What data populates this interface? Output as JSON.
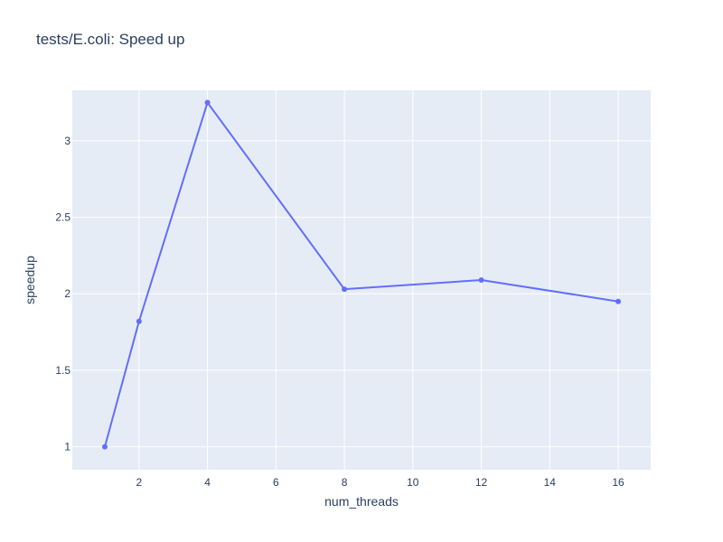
{
  "chart_data": {
    "type": "line",
    "title": "tests/E.coli: Speed up",
    "xlabel": "num_threads",
    "ylabel": "speedup",
    "xlim": [
      0.05,
      16.95
    ],
    "ylim": [
      0.85,
      3.33
    ],
    "x_ticks": [
      2,
      4,
      6,
      8,
      10,
      12,
      14,
      16
    ],
    "y_ticks": [
      1,
      1.5,
      2,
      2.5,
      3
    ],
    "x_tick_labels": [
      "2",
      "4",
      "6",
      "8",
      "10",
      "12",
      "14",
      "16"
    ],
    "y_tick_labels": [
      "1",
      "1.5",
      "2",
      "2.5",
      "3"
    ],
    "grid": true,
    "plot_bgcolor": "#e5ecf6",
    "series": [
      {
        "color": "#636efa",
        "x": [
          1,
          2,
          4,
          8,
          12,
          16
        ],
        "y": [
          1.0,
          1.82,
          3.25,
          2.03,
          2.09,
          1.95
        ]
      }
    ]
  }
}
